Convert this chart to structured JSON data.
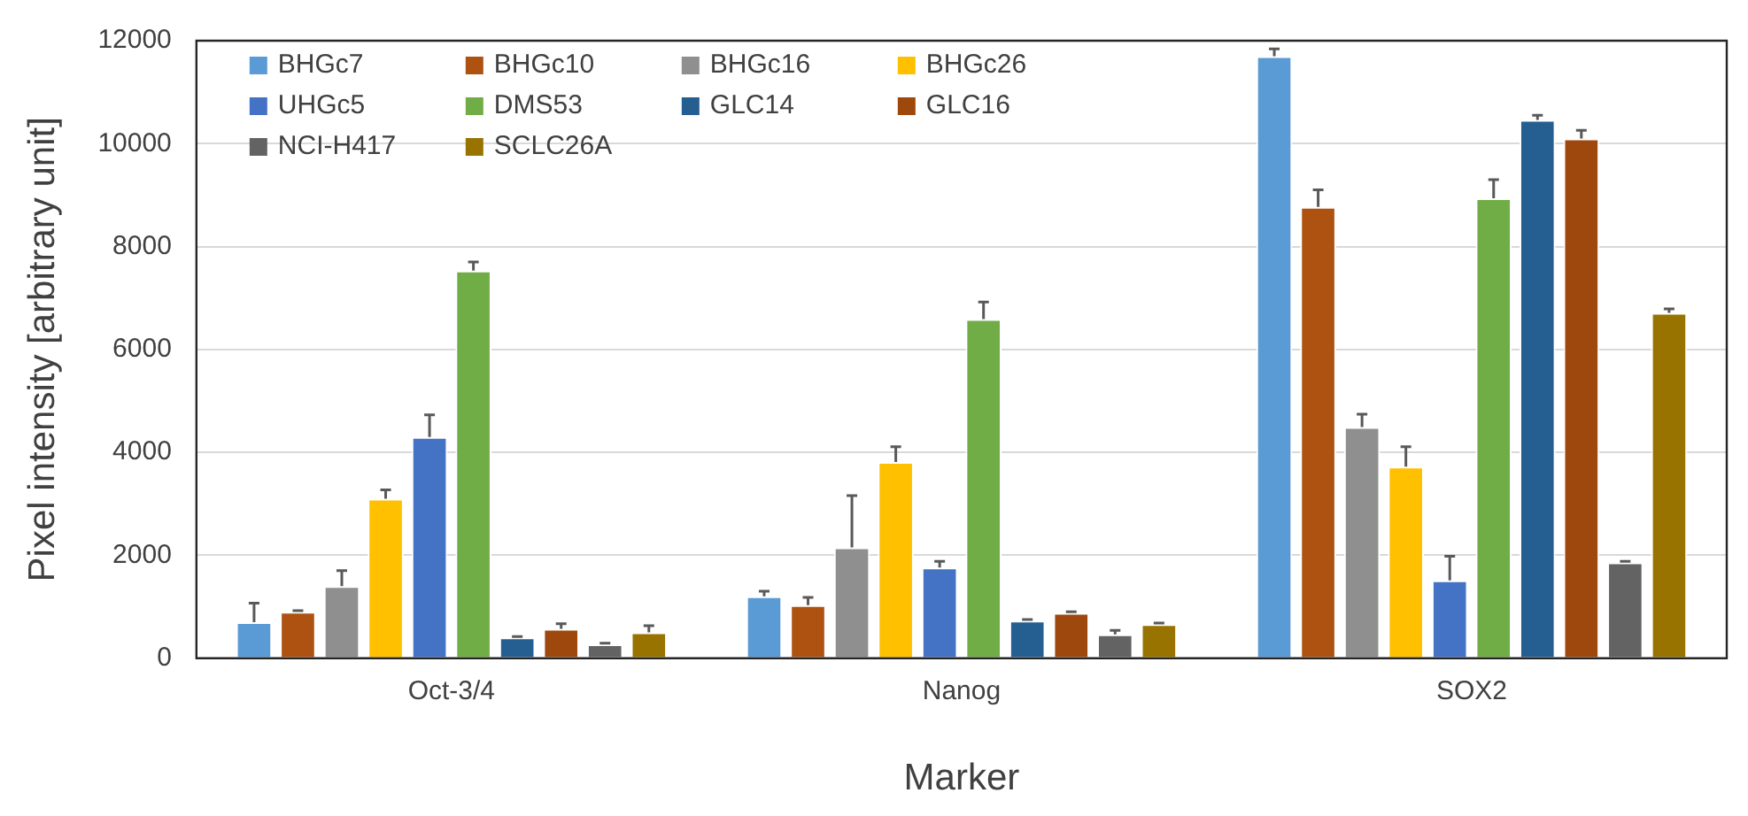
{
  "chart_data": {
    "type": "bar",
    "xlabel": "Marker",
    "ylabel": "Pixel intensity [arbitrary unit]",
    "categories": [
      "Oct-3/4",
      "Nanog",
      "SOX2"
    ],
    "ylim": [
      0,
      12000
    ],
    "yticks": [
      0,
      2000,
      4000,
      6000,
      8000,
      10000,
      12000
    ],
    "grid": "y",
    "legend": "top left",
    "series": [
      {
        "name": "BHGc7",
        "color": "#5b9bd5",
        "values": [
          700,
          1200,
          11700
        ],
        "errors": [
          [
            700,
            1070
          ],
          [
            1200,
            1300
          ],
          [
            11700,
            11840
          ]
        ]
      },
      {
        "name": "BHGc10",
        "color": "#ae5212",
        "values": [
          900,
          1030,
          8770
        ],
        "errors": [
          [
            900,
            920
          ],
          [
            1030,
            1180
          ],
          [
            8770,
            9100
          ]
        ]
      },
      {
        "name": "BHGc16",
        "color": "#8f8f8f",
        "values": [
          1400,
          2150,
          4490
        ],
        "errors": [
          [
            1400,
            1700
          ],
          [
            2150,
            3160
          ],
          [
            4490,
            4740
          ]
        ]
      },
      {
        "name": "BHGc26",
        "color": "#ffc000",
        "values": [
          3100,
          3810,
          3720
        ],
        "errors": [
          [
            3100,
            3270
          ],
          [
            3810,
            4110
          ],
          [
            3720,
            4110
          ]
        ]
      },
      {
        "name": "UHGc5",
        "color": "#4472c4",
        "values": [
          4300,
          1760,
          1510
        ],
        "errors": [
          [
            4300,
            4730
          ],
          [
            1760,
            1880
          ],
          [
            1510,
            1980
          ]
        ]
      },
      {
        "name": "DMS53",
        "color": "#70ad47",
        "values": [
          7530,
          6590,
          8940
        ],
        "errors": [
          [
            7530,
            7700
          ],
          [
            6590,
            6920
          ],
          [
            8940,
            9300
          ]
        ]
      },
      {
        "name": "GLC14",
        "color": "#255e91",
        "values": [
          400,
          730,
          10460
        ],
        "errors": [
          [
            400,
            420
          ],
          [
            730,
            750
          ],
          [
            10460,
            10550
          ]
        ]
      },
      {
        "name": "GLC16",
        "color": "#9e480e",
        "values": [
          570,
          880,
          10100
        ],
        "errors": [
          [
            570,
            670
          ],
          [
            880,
            900
          ],
          [
            10100,
            10260
          ]
        ]
      },
      {
        "name": "NCI-H417",
        "color": "#636363",
        "values": [
          270,
          460,
          1860
        ],
        "errors": [
          [
            270,
            290
          ],
          [
            460,
            540
          ],
          [
            1860,
            1880
          ]
        ]
      },
      {
        "name": "SCLC26A",
        "color": "#997300",
        "values": [
          500,
          660,
          6710
        ],
        "errors": [
          [
            500,
            630
          ],
          [
            660,
            680
          ],
          [
            6710,
            6790
          ]
        ]
      }
    ]
  }
}
